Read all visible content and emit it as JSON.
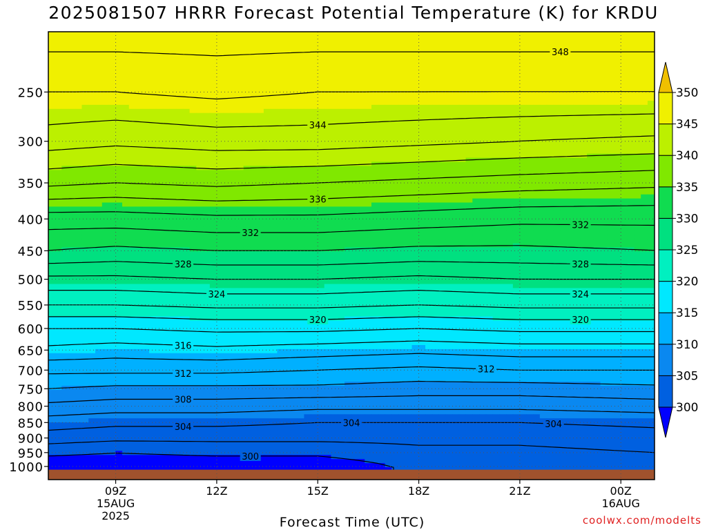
{
  "title": "2025081507 HRRR Forecast Potential Temperature (K) for KRDU",
  "credit": "coolwx.com/modelts",
  "chart_data": {
    "type": "contour",
    "variable": "Potential Temperature (K)",
    "xlabel": "Forecast Time (UTC)",
    "x_range_hours": [
      7,
      25
    ],
    "x_ticks": [
      {
        "hour": 9,
        "label": "09Z",
        "date": "15AUG",
        "year": "2025"
      },
      {
        "hour": 12,
        "label": "12Z"
      },
      {
        "hour": 15,
        "label": "15Z"
      },
      {
        "hour": 18,
        "label": "18Z"
      },
      {
        "hour": 21,
        "label": "21Z"
      },
      {
        "hour": 24,
        "label": "00Z",
        "date": "16AUG"
      }
    ],
    "y_axis": "pressure (hPa)",
    "y_range": [
      1050,
      200
    ],
    "y_scale": "log",
    "y_ticks": [
      250,
      300,
      350,
      400,
      450,
      500,
      550,
      600,
      650,
      700,
      750,
      800,
      850,
      900,
      950,
      1000
    ],
    "grid": "dotted",
    "colorbar": {
      "levels": [
        300,
        305,
        310,
        315,
        320,
        325,
        330,
        335,
        340,
        345,
        350
      ],
      "colors": [
        "#0000ff",
        "#0060e0",
        "#0a88f0",
        "#00b0ff",
        "#00e8ff",
        "#00f0c0",
        "#00e080",
        "#10dc50",
        "#80e800",
        "#bcf000",
        "#f0f000",
        "#f0c000"
      ],
      "extend": "both"
    },
    "contour_interval": 2,
    "contour_labels": [
      {
        "value": 348,
        "hour": 22.2
      },
      {
        "value": 344,
        "hour": 15
      },
      {
        "value": 336,
        "hour": 15
      },
      {
        "value": 332,
        "hour": 13
      },
      {
        "value": 332,
        "hour": 22.8
      },
      {
        "value": 328,
        "hour": 11
      },
      {
        "value": 328,
        "hour": 22.8
      },
      {
        "value": 324,
        "hour": 12
      },
      {
        "value": 324,
        "hour": 22.8
      },
      {
        "value": 320,
        "hour": 15
      },
      {
        "value": 320,
        "hour": 22.8
      },
      {
        "value": 316,
        "hour": 11
      },
      {
        "value": 312,
        "hour": 11
      },
      {
        "value": 312,
        "hour": 20
      },
      {
        "value": 308,
        "hour": 11
      },
      {
        "value": 304,
        "hour": 11
      },
      {
        "value": 304,
        "hour": 16
      },
      {
        "value": 304,
        "hour": 22
      },
      {
        "value": 300,
        "hour": 13
      }
    ],
    "profiles": [
      {
        "hour": 7,
        "theta_at_p": [
          [
            1000,
            298.5
          ],
          [
            950,
            300.5
          ],
          [
            900,
            303
          ],
          [
            850,
            305
          ],
          [
            800,
            307.5
          ],
          [
            750,
            310
          ],
          [
            700,
            312.5
          ],
          [
            650,
            315.5
          ],
          [
            600,
            318
          ],
          [
            550,
            322
          ],
          [
            500,
            325.5
          ],
          [
            450,
            330
          ],
          [
            400,
            333
          ],
          [
            350,
            338.5
          ],
          [
            300,
            343
          ],
          [
            250,
            346
          ],
          [
            200,
            349
          ]
        ]
      },
      {
        "hour": 9,
        "theta_at_p": [
          [
            1000,
            298.5
          ],
          [
            950,
            300
          ],
          [
            900,
            302.5
          ],
          [
            850,
            304.5
          ],
          [
            800,
            307
          ],
          [
            750,
            309.5
          ],
          [
            700,
            312.5
          ],
          [
            650,
            315
          ],
          [
            600,
            318
          ],
          [
            550,
            322
          ],
          [
            500,
            325.5
          ],
          [
            450,
            329.5
          ],
          [
            400,
            333
          ],
          [
            350,
            338
          ],
          [
            300,
            342.5
          ],
          [
            250,
            346
          ],
          [
            200,
            349
          ]
        ]
      },
      {
        "hour": 12,
        "theta_at_p": [
          [
            1000,
            298.5
          ],
          [
            950,
            300.5
          ],
          [
            900,
            302.5
          ],
          [
            850,
            304.5
          ],
          [
            800,
            307
          ],
          [
            750,
            309.5
          ],
          [
            700,
            312.5
          ],
          [
            650,
            315.5
          ],
          [
            600,
            318.5
          ],
          [
            550,
            322.5
          ],
          [
            500,
            326
          ],
          [
            450,
            330
          ],
          [
            400,
            333.5
          ],
          [
            350,
            338.5
          ],
          [
            300,
            343
          ],
          [
            250,
            346.5
          ],
          [
            200,
            349
          ]
        ]
      },
      {
        "hour": 15,
        "theta_at_p": [
          [
            1000,
            298.5
          ],
          [
            950,
            300.5
          ],
          [
            900,
            302.5
          ],
          [
            850,
            304
          ],
          [
            800,
            306.5
          ],
          [
            750,
            309.5
          ],
          [
            700,
            312
          ],
          [
            650,
            315
          ],
          [
            600,
            318.5
          ],
          [
            550,
            322.5
          ],
          [
            500,
            326
          ],
          [
            450,
            330
          ],
          [
            400,
            333.5
          ],
          [
            350,
            338
          ],
          [
            300,
            343
          ],
          [
            250,
            346
          ],
          [
            200,
            349
          ]
        ]
      },
      {
        "hour": 18,
        "theta_at_p": [
          [
            1000,
            300.5
          ],
          [
            950,
            301.5
          ],
          [
            900,
            302.5
          ],
          [
            850,
            304
          ],
          [
            800,
            306.5
          ],
          [
            750,
            309
          ],
          [
            700,
            311.5
          ],
          [
            650,
            314.5
          ],
          [
            600,
            318
          ],
          [
            550,
            322
          ],
          [
            500,
            325.5
          ],
          [
            450,
            329.5
          ],
          [
            400,
            333
          ],
          [
            350,
            337.5
          ],
          [
            300,
            342.5
          ],
          [
            250,
            346
          ],
          [
            200,
            349
          ]
        ]
      },
      {
        "hour": 21,
        "theta_at_p": [
          [
            1000,
            300.5
          ],
          [
            950,
            301.5
          ],
          [
            900,
            302.5
          ],
          [
            850,
            304
          ],
          [
            800,
            306.5
          ],
          [
            750,
            309
          ],
          [
            700,
            312
          ],
          [
            650,
            315
          ],
          [
            600,
            318.5
          ],
          [
            550,
            322.5
          ],
          [
            500,
            326
          ],
          [
            450,
            329.5
          ],
          [
            400,
            332.5
          ],
          [
            350,
            337
          ],
          [
            300,
            342
          ],
          [
            250,
            346
          ],
          [
            200,
            349
          ]
        ]
      },
      {
        "hour": 25,
        "theta_at_p": [
          [
            1000,
            301
          ],
          [
            950,
            302
          ],
          [
            900,
            303
          ],
          [
            850,
            304.5
          ],
          [
            800,
            307
          ],
          [
            750,
            309.5
          ],
          [
            700,
            312
          ],
          [
            650,
            315
          ],
          [
            600,
            318.5
          ],
          [
            550,
            322.5
          ],
          [
            500,
            326
          ],
          [
            450,
            330
          ],
          [
            400,
            332.5
          ],
          [
            350,
            336.5
          ],
          [
            300,
            341.5
          ],
          [
            250,
            346
          ],
          [
            200,
            349
          ]
        ]
      }
    ],
    "surface": "ground (below ~1012 hPa)"
  }
}
